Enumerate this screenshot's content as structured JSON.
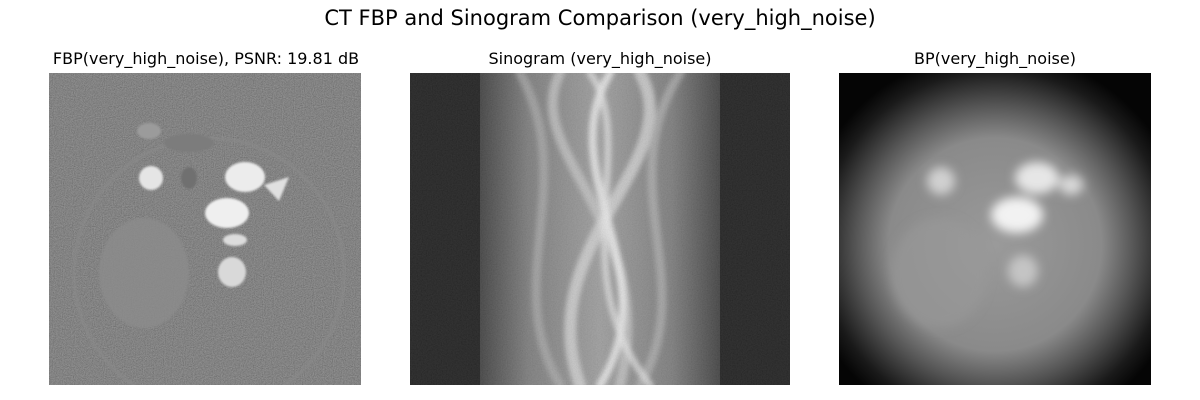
{
  "figure": {
    "title": "CT FBP and Sinogram Comparison (very_high_noise)"
  },
  "panels": [
    {
      "title": "FBP(very_high_noise), PSNR: 19.81 dB",
      "kind": "grayscale-image",
      "depicts": "filtered back projection reconstruction"
    },
    {
      "title": "Sinogram (very_high_noise)",
      "kind": "grayscale-image",
      "depicts": "sinogram"
    },
    {
      "title": "BP(very_high_noise)",
      "kind": "grayscale-image",
      "depicts": "unfiltered back projection"
    }
  ]
}
